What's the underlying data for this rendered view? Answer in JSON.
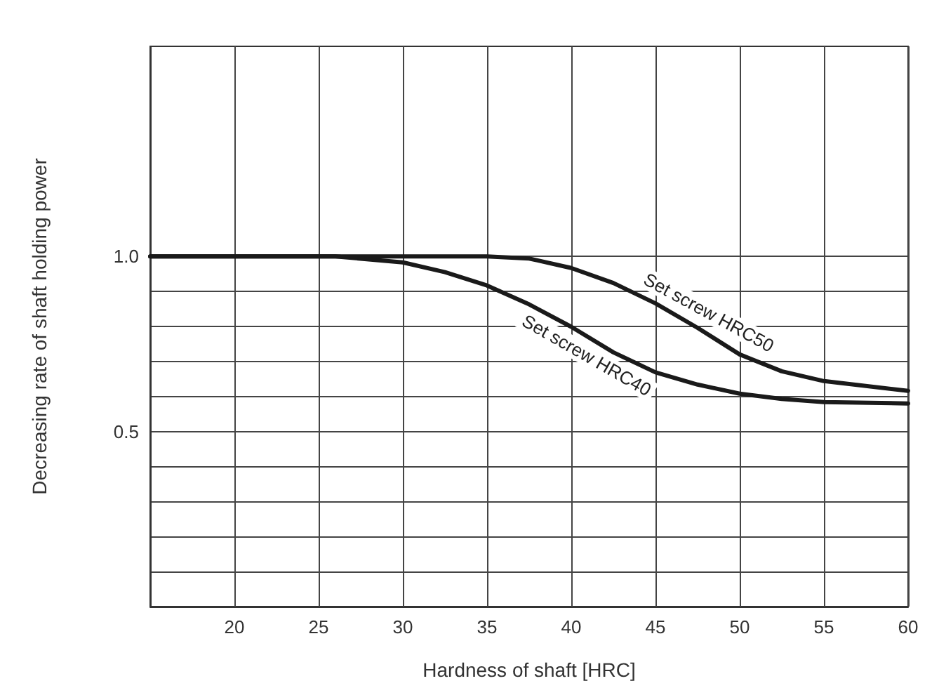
{
  "chart_data": {
    "type": "line",
    "xlabel": "Hardness of shaft [HRC]",
    "ylabel": "Decreasing rate of shaft holding power",
    "xlim": [
      15,
      60
    ],
    "xticks": [
      20,
      25,
      30,
      35,
      40,
      45,
      50,
      55,
      60
    ],
    "ylim": [
      0,
      1.6
    ],
    "yticks": [
      {
        "value": 0,
        "label": null
      },
      {
        "value": 0.1,
        "label": null
      },
      {
        "value": 0.2,
        "label": null
      },
      {
        "value": 0.3,
        "label": null
      },
      {
        "value": 0.4,
        "label": null
      },
      {
        "value": 0.5,
        "label": "0.5"
      },
      {
        "value": 0.6,
        "label": null
      },
      {
        "value": 0.7,
        "label": null
      },
      {
        "value": 0.8,
        "label": null
      },
      {
        "value": 0.9,
        "label": null
      },
      {
        "value": 1.0,
        "label": "1.0"
      }
    ],
    "grid": true,
    "legend": false,
    "marker": "none",
    "line_style": "solid",
    "series": [
      {
        "name": "Set screw HRC50",
        "color": "#1a1a1a",
        "x": [
          15,
          20,
          25,
          30,
          35,
          37.5,
          40,
          42.5,
          45,
          47.5,
          50,
          52.5,
          55,
          60
        ],
        "values": [
          1.0,
          1.0,
          1.0,
          1.0,
          1.0,
          0.994,
          0.967,
          0.924,
          0.866,
          0.796,
          0.72,
          0.672,
          0.644,
          0.616
        ]
      },
      {
        "name": "Set screw HRC40",
        "color": "#1a1a1a",
        "x": [
          15,
          20,
          26,
          30,
          32.5,
          35,
          37.5,
          40,
          42.5,
          45,
          47.5,
          50,
          52.5,
          55,
          60
        ],
        "values": [
          1.0,
          1.0,
          1.0,
          0.983,
          0.955,
          0.917,
          0.863,
          0.799,
          0.726,
          0.669,
          0.634,
          0.608,
          0.593,
          0.584,
          0.58
        ]
      }
    ]
  }
}
